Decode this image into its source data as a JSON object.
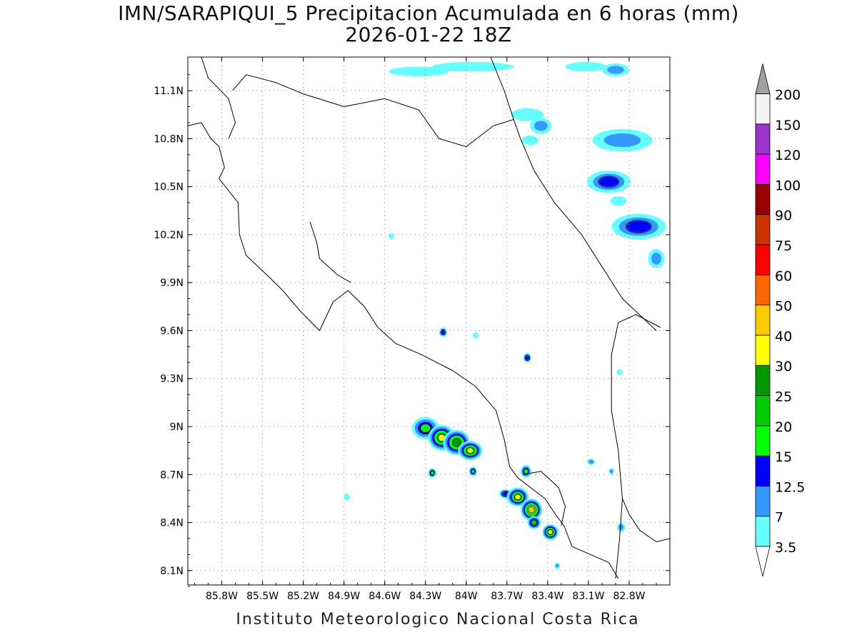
{
  "title": {
    "line1": "IMN/SARAPIQUI_5 Precipitacion Acumulada en 6 horas (mm)",
    "line2": "2026-01-22 18Z"
  },
  "footer": "Instituto Meteorologico Nacional Costa Rica",
  "map": {
    "lon_range": [
      -86.05,
      -82.5
    ],
    "lat_range": [
      8.01,
      11.31
    ],
    "x_ticks": [
      {
        "lon": -85.8,
        "label": "85.8W"
      },
      {
        "lon": -85.5,
        "label": "85.5W"
      },
      {
        "lon": -85.2,
        "label": "85.2W"
      },
      {
        "lon": -84.9,
        "label": "84.9W"
      },
      {
        "lon": -84.6,
        "label": "84.6W"
      },
      {
        "lon": -84.3,
        "label": "84.3W"
      },
      {
        "lon": -84.0,
        "label": "84W"
      },
      {
        "lon": -83.7,
        "label": "83.7W"
      },
      {
        "lon": -83.4,
        "label": "83.4W"
      },
      {
        "lon": -83.1,
        "label": "83.1W"
      },
      {
        "lon": -82.8,
        "label": "82.8W"
      }
    ],
    "y_ticks": [
      {
        "lat": 11.1,
        "label": "11.1N"
      },
      {
        "lat": 10.8,
        "label": "10.8N"
      },
      {
        "lat": 10.5,
        "label": "10.5N"
      },
      {
        "lat": 10.2,
        "label": "10.2N"
      },
      {
        "lat": 9.9,
        "label": "9.9N"
      },
      {
        "lat": 9.6,
        "label": "9.6N"
      },
      {
        "lat": 9.3,
        "label": "9.3N"
      },
      {
        "lat": 9.0,
        "label": "9N"
      },
      {
        "lat": 8.7,
        "label": "8.7N"
      },
      {
        "lat": 8.4,
        "label": "8.4N"
      },
      {
        "lat": 8.1,
        "label": "8.1N"
      }
    ],
    "grid": true,
    "grid_style": "dotted",
    "frame_color": "#000000",
    "boundary_color": "#000000"
  },
  "legend": {
    "placement": "right",
    "arrow_top_color": "#a0a0a0",
    "arrow_bottom_color": "#ffffff",
    "bins": [
      {
        "label": "3.5",
        "color": "#66ffff"
      },
      {
        "label": "7",
        "color": "#3399ff"
      },
      {
        "label": "12.5",
        "color": "#0000ff"
      },
      {
        "label": "15",
        "color": "#00ff00"
      },
      {
        "label": "20",
        "color": "#00cc00"
      },
      {
        "label": "25",
        "color": "#009900"
      },
      {
        "label": "30",
        "color": "#ffff00"
      },
      {
        "label": "40",
        "color": "#ffcc00"
      },
      {
        "label": "50",
        "color": "#ff6600"
      },
      {
        "label": "60",
        "color": "#ff0000"
      },
      {
        "label": "75",
        "color": "#cc3300"
      },
      {
        "label": "90",
        "color": "#990000"
      },
      {
        "label": "100",
        "color": "#ff00ff"
      },
      {
        "label": "120",
        "color": "#9933cc"
      },
      {
        "label": "150",
        "color": "#f5f5f5"
      },
      {
        "label": "200",
        "color": null
      }
    ]
  },
  "precip_cells": [
    {
      "lon": -83.95,
      "lat": 11.25,
      "rx": 0.3,
      "ry": 0.03,
      "levels": [
        3.5
      ]
    },
    {
      "lon": -84.35,
      "lat": 11.22,
      "rx": 0.22,
      "ry": 0.03,
      "levels": [
        3.5
      ]
    },
    {
      "lon": -83.12,
      "lat": 11.25,
      "rx": 0.15,
      "ry": 0.03,
      "levels": [
        3.5
      ]
    },
    {
      "lon": -82.9,
      "lat": 11.23,
      "rx": 0.1,
      "ry": 0.04,
      "levels": [
        3.5,
        7
      ]
    },
    {
      "lon": -83.55,
      "lat": 10.95,
      "rx": 0.12,
      "ry": 0.04,
      "levels": [
        3.5
      ]
    },
    {
      "lon": -83.45,
      "lat": 10.88,
      "rx": 0.08,
      "ry": 0.05,
      "levels": [
        3.5,
        7
      ]
    },
    {
      "lon": -83.53,
      "lat": 10.79,
      "rx": 0.06,
      "ry": 0.03,
      "levels": [
        3.5
      ]
    },
    {
      "lon": -82.85,
      "lat": 10.79,
      "rx": 0.22,
      "ry": 0.07,
      "levels": [
        3.5,
        7
      ]
    },
    {
      "lon": -82.95,
      "lat": 10.53,
      "rx": 0.16,
      "ry": 0.07,
      "levels": [
        3.5,
        7,
        12.5
      ]
    },
    {
      "lon": -82.88,
      "lat": 10.41,
      "rx": 0.06,
      "ry": 0.03,
      "levels": [
        3.5
      ]
    },
    {
      "lon": -82.73,
      "lat": 10.25,
      "rx": 0.2,
      "ry": 0.08,
      "levels": [
        3.5,
        7,
        12.5
      ]
    },
    {
      "lon": -82.6,
      "lat": 10.05,
      "rx": 0.06,
      "ry": 0.06,
      "levels": [
        3.5,
        7
      ]
    },
    {
      "lon": -84.55,
      "lat": 10.19,
      "rx": 0.02,
      "ry": 0.02,
      "levels": [
        3.5
      ]
    },
    {
      "lon": -84.17,
      "lat": 9.59,
      "rx": 0.03,
      "ry": 0.03,
      "levels": [
        3.5,
        7,
        12.5
      ]
    },
    {
      "lon": -83.93,
      "lat": 9.57,
      "rx": 0.02,
      "ry": 0.02,
      "levels": [
        3.5
      ]
    },
    {
      "lon": -83.55,
      "lat": 9.43,
      "rx": 0.03,
      "ry": 0.03,
      "levels": [
        3.5,
        7,
        12.5
      ]
    },
    {
      "lon": -82.87,
      "lat": 9.34,
      "rx": 0.02,
      "ry": 0.02,
      "levels": [
        3.5
      ]
    },
    {
      "lon": -84.3,
      "lat": 8.99,
      "rx": 0.1,
      "ry": 0.07,
      "levels": [
        3.5,
        7,
        12.5,
        15
      ]
    },
    {
      "lon": -84.18,
      "lat": 8.93,
      "rx": 0.1,
      "ry": 0.08,
      "levels": [
        3.5,
        7,
        12.5,
        15,
        20,
        30
      ]
    },
    {
      "lon": -84.07,
      "lat": 8.9,
      "rx": 0.1,
      "ry": 0.08,
      "levels": [
        3.5,
        7,
        12.5,
        15,
        20,
        25
      ]
    },
    {
      "lon": -83.97,
      "lat": 8.85,
      "rx": 0.09,
      "ry": 0.06,
      "levels": [
        3.5,
        7,
        12.5,
        15,
        20,
        30
      ]
    },
    {
      "lon": -84.25,
      "lat": 8.71,
      "rx": 0.03,
      "ry": 0.03,
      "levels": [
        3.5,
        7,
        12.5,
        15
      ]
    },
    {
      "lon": -83.95,
      "lat": 8.72,
      "rx": 0.03,
      "ry": 0.03,
      "levels": [
        3.5,
        7,
        12.5,
        15
      ]
    },
    {
      "lon": -83.71,
      "lat": 8.58,
      "rx": 0.05,
      "ry": 0.03,
      "levels": [
        3.5,
        7,
        12.5
      ]
    },
    {
      "lon": -83.56,
      "lat": 8.72,
      "rx": 0.04,
      "ry": 0.04,
      "levels": [
        3.5,
        7,
        12.5,
        15
      ]
    },
    {
      "lon": -83.62,
      "lat": 8.56,
      "rx": 0.08,
      "ry": 0.06,
      "levels": [
        3.5,
        7,
        12.5,
        15,
        20,
        30
      ]
    },
    {
      "lon": -83.52,
      "lat": 8.48,
      "rx": 0.08,
      "ry": 0.07,
      "levels": [
        3.5,
        7,
        12.5,
        15,
        20,
        30,
        40
      ]
    },
    {
      "lon": -83.5,
      "lat": 8.4,
      "rx": 0.05,
      "ry": 0.04,
      "levels": [
        3.5,
        7,
        12.5,
        15,
        20
      ]
    },
    {
      "lon": -83.38,
      "lat": 8.34,
      "rx": 0.06,
      "ry": 0.05,
      "levels": [
        3.5,
        7,
        12.5,
        15,
        20,
        30
      ]
    },
    {
      "lon": -83.33,
      "lat": 8.13,
      "rx": 0.02,
      "ry": 0.02,
      "levels": [
        3.5,
        7
      ]
    },
    {
      "lon": -83.08,
      "lat": 8.78,
      "rx": 0.03,
      "ry": 0.02,
      "levels": [
        3.5,
        7
      ]
    },
    {
      "lon": -82.93,
      "lat": 8.72,
      "rx": 0.02,
      "ry": 0.02,
      "levels": [
        3.5,
        7
      ]
    },
    {
      "lon": -82.86,
      "lat": 8.37,
      "rx": 0.03,
      "ry": 0.03,
      "levels": [
        3.5,
        7
      ]
    },
    {
      "lon": -84.88,
      "lat": 8.56,
      "rx": 0.02,
      "ry": 0.02,
      "levels": [
        3.5
      ]
    }
  ],
  "boundaries": [
    {
      "name": "costa-rica-outline",
      "points": [
        [
          -86.05,
          10.88
        ],
        [
          -85.95,
          10.9
        ],
        [
          -85.88,
          10.8
        ],
        [
          -85.82,
          10.75
        ],
        [
          -85.78,
          10.62
        ],
        [
          -85.82,
          10.55
        ],
        [
          -85.68,
          10.4
        ],
        [
          -85.67,
          10.2
        ],
        [
          -85.62,
          10.07
        ],
        [
          -85.47,
          9.95
        ],
        [
          -85.35,
          9.85
        ],
        [
          -85.22,
          9.72
        ],
        [
          -85.08,
          9.6
        ],
        [
          -84.98,
          9.78
        ],
        [
          -84.87,
          9.85
        ],
        [
          -84.75,
          9.75
        ],
        [
          -84.65,
          9.62
        ],
        [
          -84.52,
          9.52
        ],
        [
          -84.33,
          9.45
        ],
        [
          -84.1,
          9.35
        ],
        [
          -83.93,
          9.25
        ],
        [
          -83.78,
          9.1
        ],
        [
          -83.72,
          8.92
        ],
        [
          -83.68,
          8.75
        ],
        [
          -83.62,
          8.68
        ],
        [
          -83.42,
          8.55
        ],
        [
          -83.35,
          8.46
        ],
        [
          -83.28,
          8.38
        ],
        [
          -83.22,
          8.25
        ],
        [
          -82.95,
          8.15
        ],
        [
          -82.88,
          8.05
        ]
      ]
    },
    {
      "name": "nicoya-coast",
      "points": [
        [
          -85.15,
          10.28
        ],
        [
          -85.1,
          10.15
        ],
        [
          -85.08,
          10.05
        ],
        [
          -84.95,
          9.95
        ],
        [
          -84.85,
          9.9
        ]
      ]
    },
    {
      "name": "nicaragua-border",
      "points": [
        [
          -85.72,
          11.1
        ],
        [
          -85.62,
          11.2
        ],
        [
          -85.4,
          11.15
        ],
        [
          -85.2,
          11.08
        ],
        [
          -84.9,
          11.0
        ],
        [
          -84.6,
          11.05
        ],
        [
          -84.35,
          10.98
        ],
        [
          -84.2,
          10.8
        ],
        [
          -84.0,
          10.75
        ],
        [
          -83.8,
          10.88
        ],
        [
          -83.65,
          10.92
        ]
      ]
    },
    {
      "name": "nicaragua-lake-shore",
      "points": [
        [
          -85.95,
          11.31
        ],
        [
          -85.9,
          11.18
        ],
        [
          -85.75,
          11.05
        ],
        [
          -85.7,
          10.9
        ],
        [
          -85.75,
          10.8
        ]
      ]
    },
    {
      "name": "caribbean-coast",
      "points": [
        [
          -83.82,
          11.31
        ],
        [
          -83.72,
          11.1
        ],
        [
          -83.65,
          10.92
        ],
        [
          -83.6,
          10.8
        ],
        [
          -83.5,
          10.6
        ],
        [
          -83.35,
          10.4
        ],
        [
          -83.15,
          10.2
        ],
        [
          -83.0,
          10.0
        ],
        [
          -82.85,
          9.8
        ],
        [
          -82.6,
          9.6
        ]
      ]
    },
    {
      "name": "panama-border",
      "points": [
        [
          -82.57,
          9.62
        ],
        [
          -82.75,
          9.7
        ],
        [
          -82.88,
          9.65
        ],
        [
          -82.93,
          9.45
        ],
        [
          -82.93,
          9.1
        ],
        [
          -82.9,
          8.95
        ],
        [
          -82.88,
          8.85
        ],
        [
          -82.85,
          8.55
        ],
        [
          -82.87,
          8.3
        ],
        [
          -82.9,
          8.05
        ]
      ]
    },
    {
      "name": "osa-peninsula",
      "points": [
        [
          -83.58,
          8.7
        ],
        [
          -83.45,
          8.72
        ],
        [
          -83.32,
          8.62
        ],
        [
          -83.27,
          8.5
        ],
        [
          -83.3,
          8.38
        ]
      ]
    },
    {
      "name": "panama-coast",
      "points": [
        [
          -82.5,
          8.3
        ],
        [
          -82.6,
          8.28
        ],
        [
          -82.72,
          8.35
        ],
        [
          -82.8,
          8.45
        ],
        [
          -82.85,
          8.55
        ]
      ]
    }
  ]
}
